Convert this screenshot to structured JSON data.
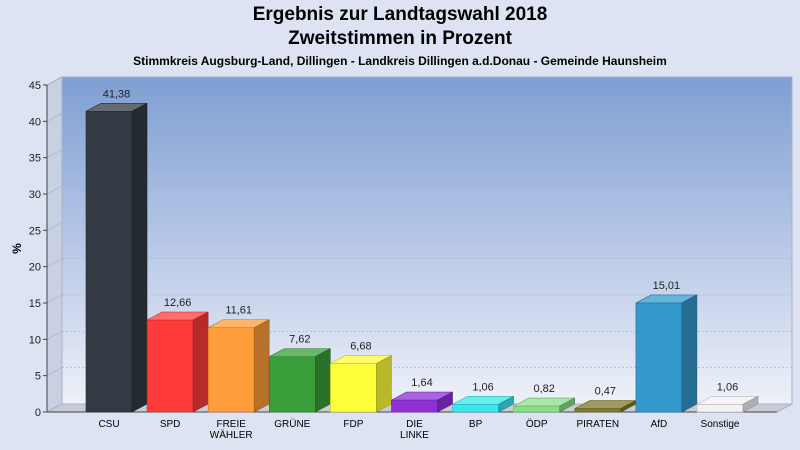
{
  "chart_data": {
    "type": "bar",
    "title": "Ergebnis zur Landtagswahl 2018",
    "subtitle": "Zweitstimmen in Prozent",
    "caption": "Stimmkreis Augsburg-Land, Dillingen - Landkreis Dillingen a.d.Donau - Gemeinde Haunsheim",
    "ylabel": "%",
    "xlabel": "",
    "ylim": [
      0,
      45
    ],
    "yticks": [
      0,
      5,
      10,
      15,
      20,
      25,
      30,
      35,
      40,
      45
    ],
    "grid": true,
    "bars": [
      {
        "label": [
          "CSU"
        ],
        "value": 41.38,
        "value_label": "41,38",
        "color": "#333a44"
      },
      {
        "label": [
          "SPD"
        ],
        "value": 12.66,
        "value_label": "12,66",
        "color": "#ff3b3b"
      },
      {
        "label": [
          "FREIE",
          "WÄHLER"
        ],
        "value": 11.61,
        "value_label": "11,61",
        "color": "#ff9d3a"
      },
      {
        "label": [
          "GRÜNE"
        ],
        "value": 7.62,
        "value_label": "7,62",
        "color": "#3a9e3a"
      },
      {
        "label": [
          "FDP"
        ],
        "value": 6.68,
        "value_label": "6,68",
        "color": "#ffff3a"
      },
      {
        "label": [
          "DIE",
          "LINKE"
        ],
        "value": 1.64,
        "value_label": "1,64",
        "color": "#8f2fd8"
      },
      {
        "label": [
          "BP"
        ],
        "value": 1.06,
        "value_label": "1,06",
        "color": "#3ae8ee"
      },
      {
        "label": [
          "ÖDP"
        ],
        "value": 0.82,
        "value_label": "0,82",
        "color": "#88e088"
      },
      {
        "label": [
          "PIRATEN"
        ],
        "value": 0.47,
        "value_label": "0,47",
        "color": "#7d7a2c"
      },
      {
        "label": [
          "AfD"
        ],
        "value": 15.01,
        "value_label": "15,01",
        "color": "#3399cc"
      },
      {
        "label": [
          "Sonstige"
        ],
        "value": 1.06,
        "value_label": "1,06",
        "color": "#f2f2f2"
      }
    ]
  }
}
